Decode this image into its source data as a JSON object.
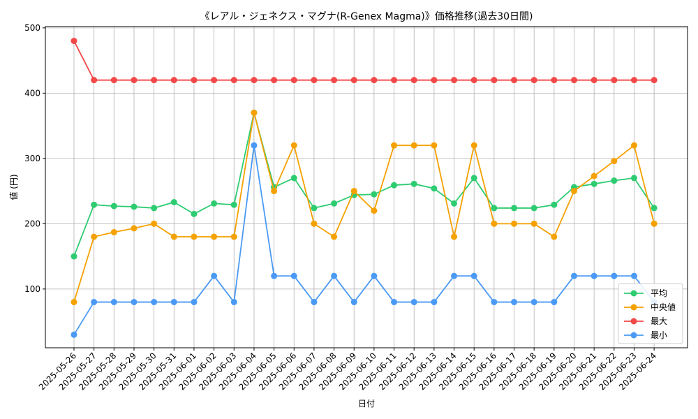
{
  "chart_data": {
    "type": "line",
    "title": "《レアル・ジェネクス・マグナ(R-Genex Magma)》価格推移(過去30日間)",
    "xlabel": "日付",
    "ylabel": "値 (円)",
    "ylim": [
      10,
      502
    ],
    "yticks": [
      100,
      200,
      300,
      400,
      500
    ],
    "grid": true,
    "legend_position": "lower-right",
    "categories": [
      "2025-05-26",
      "2025-05-27",
      "2025-05-28",
      "2025-05-29",
      "2025-05-30",
      "2025-05-31",
      "2025-06-01",
      "2025-06-02",
      "2025-06-03",
      "2025-06-04",
      "2025-06-05",
      "2025-06-06",
      "2025-06-07",
      "2025-06-08",
      "2025-06-09",
      "2025-06-10",
      "2025-06-11",
      "2025-06-12",
      "2025-06-13",
      "2025-06-14",
      "2025-06-15",
      "2025-06-16",
      "2025-06-17",
      "2025-06-18",
      "2025-06-19",
      "2025-06-20",
      "2025-06-21",
      "2025-06-22",
      "2025-06-23",
      "2025-06-24"
    ],
    "series": [
      {
        "name": "平均",
        "color": "#2ecc71",
        "values": [
          150,
          229,
          227,
          226,
          224,
          233,
          215,
          231,
          229,
          370,
          256,
          270,
          224,
          231,
          244,
          245,
          259,
          261,
          254,
          231,
          270,
          224,
          224,
          224,
          229,
          256,
          261,
          266,
          270,
          224
        ]
      },
      {
        "name": "中央値",
        "color": "#f5a100",
        "values": [
          80,
          180,
          187,
          193,
          200,
          180,
          180,
          180,
          180,
          370,
          250,
          320,
          200,
          180,
          250,
          220,
          320,
          320,
          320,
          180,
          320,
          200,
          200,
          200,
          180,
          250,
          273,
          296,
          320,
          200
        ]
      },
      {
        "name": "最大",
        "color": "#f24848",
        "values": [
          480,
          420,
          420,
          420,
          420,
          420,
          420,
          420,
          420,
          420,
          420,
          420,
          420,
          420,
          420,
          420,
          420,
          420,
          420,
          420,
          420,
          420,
          420,
          420,
          420,
          420,
          420,
          420,
          420,
          420
        ]
      },
      {
        "name": "最小",
        "color": "#4a9af5",
        "values": [
          30,
          80,
          80,
          80,
          80,
          80,
          80,
          120,
          80,
          320,
          120,
          120,
          80,
          120,
          80,
          120,
          80,
          80,
          80,
          120,
          120,
          80,
          80,
          80,
          80,
          120,
          120,
          120,
          120,
          80
        ]
      }
    ]
  }
}
